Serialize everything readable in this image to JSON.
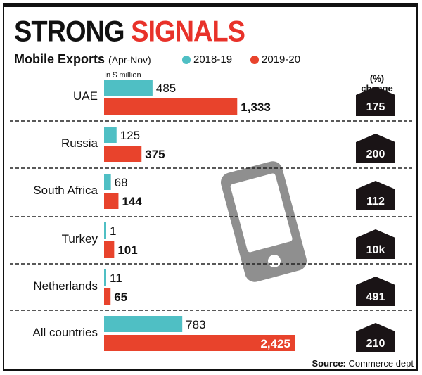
{
  "chart_data": {
    "type": "bar",
    "title": "STRONG SIGNALS",
    "title_parts": [
      "STRONG",
      "SIGNALS"
    ],
    "subtitle": "Mobile Exports",
    "period": "(Apr-Nov)",
    "unit": "In $ million",
    "categories": [
      "UAE",
      "Russia",
      "South Africa",
      "Turkey",
      "Netherlands",
      "All countries"
    ],
    "series": [
      {
        "name": "2018-19",
        "color": "#4fbfc4",
        "values": [
          485,
          125,
          68,
          1,
          11,
          783
        ],
        "labels": [
          "485",
          "125",
          "68",
          "1",
          "11",
          "783"
        ]
      },
      {
        "name": "2019-20",
        "color": "#e8432c",
        "values": [
          1333,
          375,
          144,
          101,
          65,
          2425
        ],
        "labels": [
          "1,333",
          "375",
          "144",
          "101",
          "65",
          "2,425"
        ]
      }
    ],
    "change_header": [
      "(%)",
      "change"
    ],
    "change": [
      "175",
      "200",
      "112",
      "10k",
      "491",
      "210"
    ],
    "source_label": "Source:",
    "source": "Commerce dept",
    "icon": "smartphone-icon"
  }
}
